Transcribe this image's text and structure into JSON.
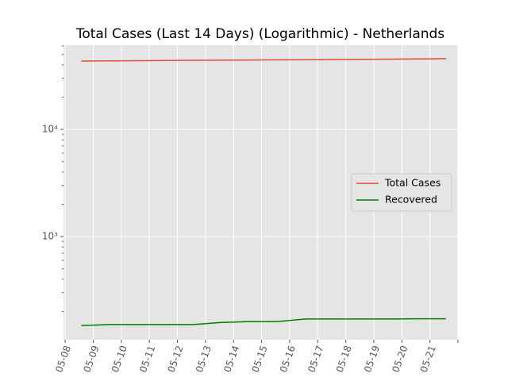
{
  "chart_data": {
    "type": "line",
    "title": "Total Cases (Last 14 Days) (Logarithmic) - Netherlands",
    "x": [
      8.57,
      9.57,
      10.57,
      11.57,
      12.57,
      13.57,
      14.57,
      15.57,
      16.57,
      17.57,
      18.57,
      19.57,
      20.57,
      21.57
    ],
    "series": [
      {
        "name": "Total Cases",
        "color": "#e24a33",
        "values": [
          43400,
          43570,
          43740,
          43910,
          44080,
          44250,
          44420,
          44590,
          44760,
          44930,
          45100,
          45270,
          45440,
          45610
        ]
      },
      {
        "name": "Recovered",
        "color": "#008000",
        "values": [
          148,
          151,
          151,
          151,
          151,
          158,
          161,
          161,
          170,
          170,
          170,
          170,
          171,
          171
        ]
      }
    ],
    "xlim": [
      7.94,
      22.0
    ],
    "xticks": [
      {
        "value": 8,
        "label": "05-08"
      },
      {
        "value": 9,
        "label": "05-09"
      },
      {
        "value": 10,
        "label": "05-10"
      },
      {
        "value": 11,
        "label": "05-11"
      },
      {
        "value": 12,
        "label": "05-12"
      },
      {
        "value": 13,
        "label": "05-13"
      },
      {
        "value": 14,
        "label": "05-14"
      },
      {
        "value": 15,
        "label": "05-15"
      },
      {
        "value": 16,
        "label": "05-16"
      },
      {
        "value": 17,
        "label": "05-17"
      },
      {
        "value": 18,
        "label": "05-18"
      },
      {
        "value": 19,
        "label": "05-19"
      },
      {
        "value": 20,
        "label": "05-20"
      },
      {
        "value": 21,
        "label": "05-21"
      },
      {
        "value": 22,
        "label": null
      }
    ],
    "ylim": [
      109,
      61000
    ],
    "yscale": "log",
    "yticks": [
      {
        "value": 1000,
        "label": "10³"
      },
      {
        "value": 10000,
        "label": "10⁴"
      }
    ],
    "yminorticks": [
      200,
      300,
      400,
      500,
      600,
      700,
      800,
      900,
      2000,
      3000,
      4000,
      5000,
      6000,
      7000,
      8000,
      9000,
      20000,
      30000,
      40000,
      50000,
      60000
    ],
    "grid": true,
    "legend": "right"
  }
}
